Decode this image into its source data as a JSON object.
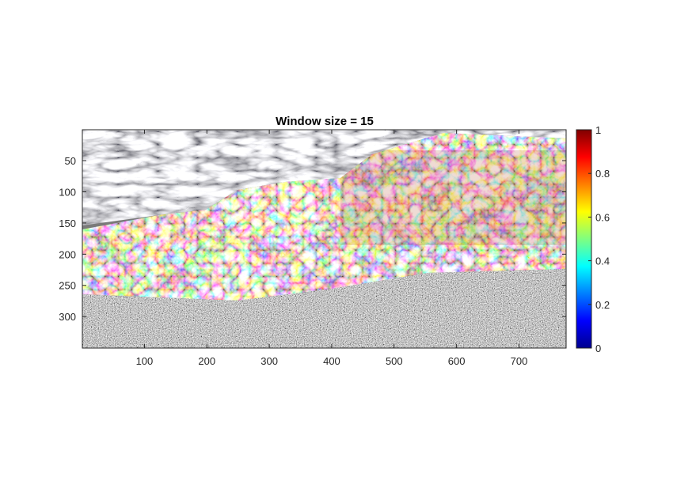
{
  "figure": {
    "title": "Window size = 15"
  },
  "image": {
    "description_kind": "filtered-texture",
    "x_range": [
      1,
      775
    ],
    "y_range": [
      1,
      350
    ],
    "x_ticks": [
      "100",
      "200",
      "300",
      "400",
      "500",
      "600",
      "700"
    ],
    "x_tick_values": [
      100,
      200,
      300,
      400,
      500,
      600,
      700
    ],
    "y_ticks": [
      "50",
      "100",
      "150",
      "200",
      "250",
      "300"
    ],
    "y_tick_values": [
      50,
      100,
      150,
      200,
      250,
      300
    ]
  },
  "colorbar": {
    "colormap": "jet",
    "range": [
      0,
      1
    ],
    "ticks": [
      "0",
      "0.2",
      "0.4",
      "0.6",
      "0.8",
      "1"
    ],
    "tick_values": [
      0,
      0.2,
      0.4,
      0.6,
      0.8,
      1
    ]
  },
  "colors": {
    "axis": "#262626",
    "background": "#ffffff"
  }
}
